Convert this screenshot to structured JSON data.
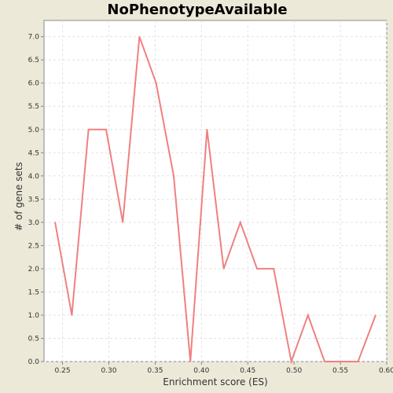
{
  "chart_data": {
    "type": "line",
    "title": "NoPhenotypeAvailable",
    "xlabel": "Enrichment score (ES)",
    "ylabel": "# of gene sets",
    "xlim": [
      0.23,
      0.6
    ],
    "ylim": [
      0,
      7.35
    ],
    "x_ticks": [
      0.25,
      0.3,
      0.35,
      0.4,
      0.45,
      0.5,
      0.55,
      0.6
    ],
    "x_tick_labels": [
      "0.25",
      "0.30",
      "0.35",
      "0.40",
      "0.45",
      "0.50",
      "0.55",
      "0.60"
    ],
    "y_ticks": [
      0,
      0.5,
      1,
      1.5,
      2,
      2.5,
      3,
      3.5,
      4,
      4.5,
      5,
      5.5,
      6,
      6.5,
      7
    ],
    "y_tick_labels": [
      "0.0",
      "0.5",
      "1.0",
      "1.5",
      "2.0",
      "2.5",
      "3.0",
      "3.5",
      "4.0",
      "4.5",
      "5.0",
      "5.5",
      "6.0",
      "6.5",
      "7.0"
    ],
    "grid": true,
    "series": [
      {
        "color": "#F08080",
        "x": [
          0.242,
          0.26,
          0.278,
          0.297,
          0.315,
          0.333,
          0.351,
          0.37,
          0.388,
          0.406,
          0.424,
          0.442,
          0.46,
          0.478,
          0.497,
          0.515,
          0.533,
          0.551,
          0.569,
          0.588
        ],
        "y": [
          3,
          1,
          5,
          5,
          3,
          7,
          6,
          4,
          0,
          5,
          2,
          3,
          2,
          2,
          0,
          1,
          0,
          0,
          0,
          1
        ]
      }
    ]
  }
}
